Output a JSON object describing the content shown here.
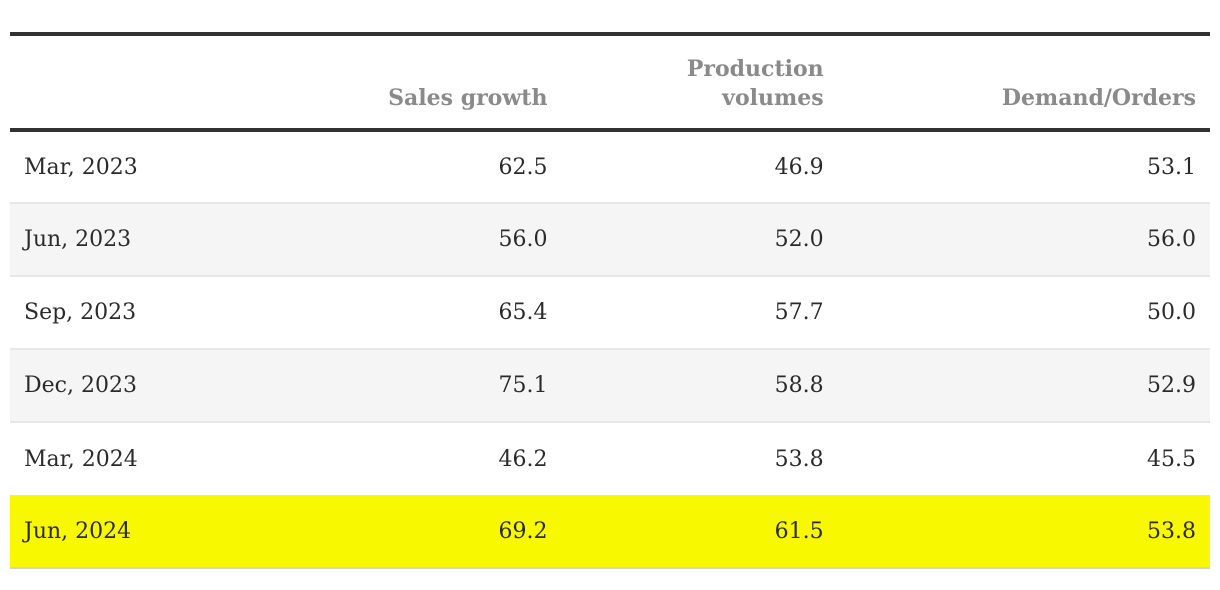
{
  "table": {
    "columns": [
      {
        "label": ""
      },
      {
        "label": "Sales growth"
      },
      {
        "label": "Production\nvolumes"
      },
      {
        "label": "Demand/Orders"
      }
    ],
    "rows": [
      {
        "label": "Mar, 2023",
        "values": [
          "62.5",
          "46.9",
          "53.1"
        ],
        "highlight": false
      },
      {
        "label": "Jun, 2023",
        "values": [
          "56.0",
          "52.0",
          "56.0"
        ],
        "highlight": false
      },
      {
        "label": "Sep, 2023",
        "values": [
          "65.4",
          "57.7",
          "50.0"
        ],
        "highlight": false
      },
      {
        "label": "Dec, 2023",
        "values": [
          "75.1",
          "58.8",
          "52.9"
        ],
        "highlight": false
      },
      {
        "label": "Mar, 2024",
        "values": [
          "46.2",
          "53.8",
          "45.5"
        ],
        "highlight": false
      },
      {
        "label": "Jun, 2024",
        "values": [
          "69.2",
          "61.5",
          "53.8"
        ],
        "highlight": true
      }
    ],
    "colors": {
      "rule": "#323232",
      "header_text": "#8a8a8a",
      "body_text": "#2b2b2b",
      "zebra": "#f5f5f5",
      "highlight": "#f8f800",
      "separator": "#e7e7e7",
      "bottom_border": "#d2d2d2"
    }
  },
  "chart_data": {
    "type": "table",
    "categories": [
      "Mar, 2023",
      "Jun, 2023",
      "Sep, 2023",
      "Dec, 2023",
      "Mar, 2024",
      "Jun, 2024"
    ],
    "series": [
      {
        "name": "Sales growth",
        "values": [
          62.5,
          56.0,
          65.4,
          75.1,
          46.2,
          69.2
        ]
      },
      {
        "name": "Production volumes",
        "values": [
          46.9,
          52.0,
          57.7,
          58.8,
          53.8,
          61.5
        ]
      },
      {
        "name": "Demand/Orders",
        "values": [
          53.1,
          56.0,
          50.0,
          52.9,
          45.5,
          53.8
        ]
      }
    ],
    "title": "",
    "highlighted_row": "Jun, 2024",
    "layout": {
      "zebra_striping": true,
      "highlight_color": "#f8f800"
    }
  }
}
